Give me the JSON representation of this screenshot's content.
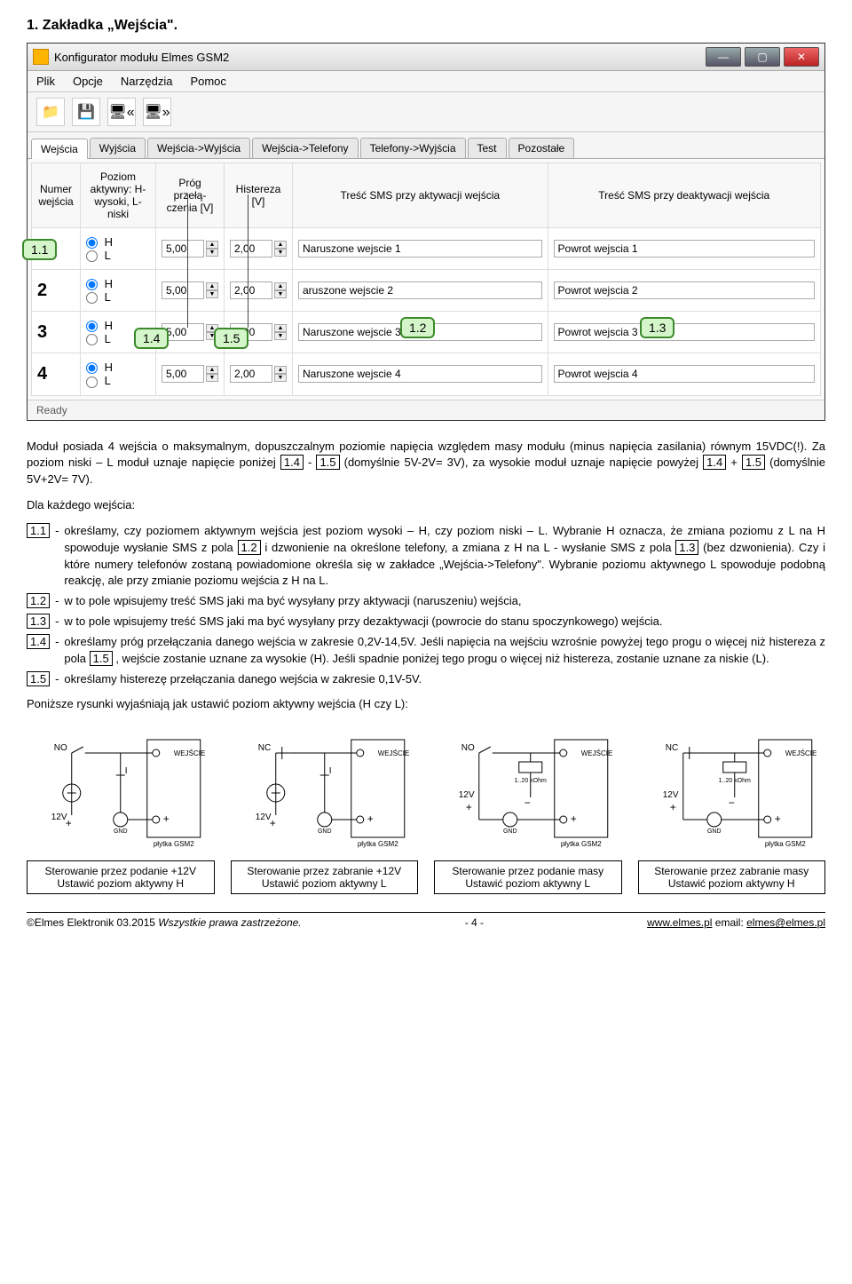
{
  "heading": "1. Zakładka „Wejścia\".",
  "window": {
    "title": "Konfigurator modułu Elmes GSM2",
    "menu": [
      "Plik",
      "Opcje",
      "Narzędzia",
      "Pomoc"
    ],
    "toolbar_icons": [
      "open-icon",
      "save-icon",
      "read-icon",
      "write-icon"
    ],
    "tabs": [
      "Wejścia",
      "Wyjścia",
      "Wejścia->Wyjścia",
      "Wejścia->Telefony",
      "Telefony->Wyjścia",
      "Test",
      "Pozostałe"
    ],
    "active_tab": 0,
    "columns": {
      "num": "Numer wejścia",
      "level": "Poziom aktywny: H-wysoki, L-niski",
      "threshold": "Próg przełą-czenia [V]",
      "hyst": "Histereza [V]",
      "sms_act": "Treść SMS przy aktywacji wejścia",
      "sms_deact": "Treść SMS przy deaktywacji wejścia"
    },
    "rows": [
      {
        "num": "1",
        "level": "H",
        "threshold": "5,00",
        "hyst": "2,00",
        "sms_act": "Naruszone wejscie 1",
        "sms_deact": "Powrot wejscia 1"
      },
      {
        "num": "2",
        "level": "H",
        "threshold": "5,00",
        "hyst": "2,00",
        "sms_act": "aruszone wejscie 2",
        "sms_deact": "Powrot wejscia 2"
      },
      {
        "num": "3",
        "level": "H",
        "threshold": "5,00",
        "hyst": "2,00",
        "sms_act": "Naruszone wejscie 3",
        "sms_deact": "Powrot wejscia 3"
      },
      {
        "num": "4",
        "level": "H",
        "threshold": "5,00",
        "hyst": "2,00",
        "sms_act": "Naruszone wejscie 4",
        "sms_deact": "Powrot wejscia 4"
      }
    ],
    "status": "Ready"
  },
  "callouts": {
    "c11": "1.1",
    "c12": "1.2",
    "c13": "1.3",
    "c14": "1.4",
    "c15": "1.5"
  },
  "body": {
    "p1a": "Moduł posiada 4 wejścia o maksymalnym, dopuszczalnym poziomie napięcia względem masy modułu (minus napięcia zasilania) równym 15VDC(!). Za poziom niski – L moduł uznaje napięcie poniżej ",
    "p1b": " - ",
    "p1c": " (domyślnie 5V-2V= 3V), za wysokie moduł uznaje napięcie powyżej ",
    "p1d": " + ",
    "p1e": " (domyślnie 5V+2V= 7V).",
    "p2": "Dla każdego wejścia:",
    "d11a": "określamy, czy poziomem aktywnym wejścia jest poziom wysoki – H, czy poziom niski – L. Wybranie H oznacza, że zmiana poziomu z L na H spowoduje wysłanie SMS z pola ",
    "d11b": " i dzwonienie na określone telefony, a zmiana z H na L - wysłanie SMS z pola ",
    "d11c": " (bez dzwonienia). Czy i które numery telefonów zostaną powiadomione określa się w zakładce „Wejścia->Telefony\". Wybranie poziomu aktywnego L spowoduje podobną reakcję, ale przy zmianie poziomu wejścia z H na L.",
    "d12": "w to pole wpisujemy treść SMS jaki ma być wysyłany przy aktywacji (naruszeniu) wejścia,",
    "d13": "w to pole wpisujemy treść SMS jaki ma być wysyłany przy dezaktywacji (powrocie do stanu spoczynkowego) wejścia.",
    "d14a": "określamy próg przełączania danego wejścia w zakresie 0,2V-14,5V. Jeśli napięcia na wejściu wzrośnie powyżej tego progu o więcej niż histereza z pola ",
    "d14b": ", wejście zostanie uznane za wysokie (H). Jeśli spadnie poniżej tego progu o więcej niż histereza, zostanie uznane za niskie (L).",
    "d15": "określamy histerezę przełączania danego wejścia w zakresie 0,1V-5V.",
    "p3": "Poniższe rysunki wyjaśniają jak ustawić poziom aktywny wejścia (H czy L):"
  },
  "refs": {
    "r12": "1.2",
    "r13": "1.3",
    "r14": "1.4",
    "r15": "1.5"
  },
  "diagrams": {
    "labels": {
      "wejscie": "WEJŚCIE",
      "no": "NO",
      "nc": "NC",
      "v12": "12V",
      "gnd": "GND",
      "plytka": "płytka GSM2",
      "res": "1..20 kOhm"
    },
    "captions": [
      {
        "l1": "Sterowanie przez podanie +12V",
        "l2": "Ustawić poziom aktywny H"
      },
      {
        "l1": "Sterowanie przez zabranie +12V",
        "l2": "Ustawić poziom aktywny L"
      },
      {
        "l1": "Sterowanie przez podanie masy",
        "l2": "Ustawić poziom aktywny L"
      },
      {
        "l1": "Sterowanie przez zabranie masy",
        "l2": "Ustawić poziom aktywny H"
      }
    ]
  },
  "footer": {
    "left": "©Elmes Elektronik 03.2015  Wszystkie prawa zastrzeżone.",
    "mid": "- 4 -",
    "right_url": "www.elmes.pl",
    "right_email": "elmes@elmes.pl",
    "right_sep": "   email: "
  },
  "colors": {
    "callout_bg": "#d4f5c9",
    "callout_border": "#3a8a2a",
    "window_bg": "#e8e8e8",
    "close_btn": "#c83232"
  }
}
